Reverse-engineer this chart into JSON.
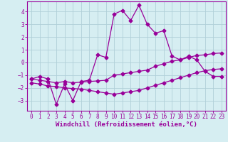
{
  "xlabel": "Windchill (Refroidissement éolien,°C)",
  "background_color": "#d6eef2",
  "grid_color": "#b0d0d8",
  "line_color": "#990099",
  "xlim": [
    -0.5,
    23.5
  ],
  "ylim": [
    -3.8,
    4.8
  ],
  "xticks": [
    0,
    1,
    2,
    3,
    4,
    5,
    6,
    7,
    8,
    9,
    10,
    11,
    12,
    13,
    14,
    15,
    16,
    17,
    18,
    19,
    20,
    21,
    22,
    23
  ],
  "yticks": [
    -3,
    -2,
    -1,
    0,
    1,
    2,
    3,
    4
  ],
  "series1_x": [
    0,
    1,
    2,
    3,
    4,
    5,
    6,
    7,
    8,
    9,
    10,
    11,
    12,
    13,
    14,
    15,
    16,
    17,
    18,
    19,
    20,
    21,
    22,
    23
  ],
  "series1_y": [
    -1.3,
    -1.1,
    -1.3,
    -3.3,
    -1.7,
    -3.0,
    -1.5,
    -1.4,
    0.6,
    0.4,
    3.8,
    4.1,
    3.3,
    4.5,
    3.0,
    2.3,
    2.5,
    0.5,
    0.2,
    0.5,
    0.2,
    -0.7,
    -1.1,
    -1.1
  ],
  "series2_x": [
    0,
    1,
    2,
    3,
    4,
    5,
    6,
    7,
    8,
    9,
    10,
    11,
    12,
    13,
    14,
    15,
    16,
    17,
    18,
    19,
    20,
    21,
    22,
    23
  ],
  "series2_y": [
    -1.3,
    -1.4,
    -1.5,
    -1.6,
    -1.5,
    -1.6,
    -1.55,
    -1.5,
    -1.45,
    -1.4,
    -1.0,
    -0.9,
    -0.8,
    -0.7,
    -0.6,
    -0.3,
    -0.1,
    0.1,
    0.2,
    0.4,
    0.55,
    0.6,
    0.7,
    0.75
  ],
  "series3_x": [
    0,
    1,
    2,
    3,
    4,
    5,
    6,
    7,
    8,
    9,
    10,
    11,
    12,
    13,
    14,
    15,
    16,
    17,
    18,
    19,
    20,
    21,
    22,
    23
  ],
  "series3_y": [
    -1.6,
    -1.7,
    -1.85,
    -1.9,
    -2.0,
    -2.05,
    -2.1,
    -2.2,
    -2.3,
    -2.4,
    -2.5,
    -2.4,
    -2.3,
    -2.2,
    -2.0,
    -1.8,
    -1.6,
    -1.4,
    -1.2,
    -1.0,
    -0.8,
    -0.65,
    -0.55,
    -0.5
  ],
  "marker": "D",
  "markersize": 2.5,
  "linewidth": 0.9,
  "tick_fontsize": 5.5,
  "xlabel_fontsize": 6.5
}
